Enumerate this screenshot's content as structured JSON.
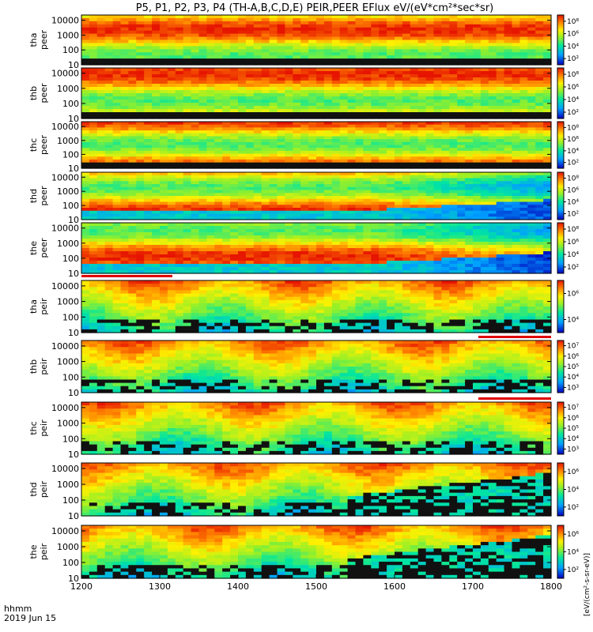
{
  "title": "P5, P1, P2, P3, P4 (TH-A,B,C,D,E) PEIR,PEER EFlux eV/(eV*cm²*sec*sr)",
  "time_axis": {
    "label_line1": "hhmm",
    "label_line2": "2019 Jun 15",
    "ticks": [
      "1200",
      "1300",
      "1400",
      "1500",
      "1600",
      "1700",
      "1800"
    ]
  },
  "colorbar_label": "[eV/(cm²-s-sr-eV)]",
  "chart_data": [
    {
      "type": "heatmap",
      "probe": "tha",
      "species": "peer",
      "ylabel": [
        "tha",
        "peer"
      ],
      "yticks": [
        "10000",
        "1000",
        "100",
        "10"
      ],
      "log_y": true,
      "xlim": [
        1200,
        1800
      ],
      "colorbar_ticks": [
        "10⁸",
        "10⁶",
        "10⁴",
        "10²"
      ]
    },
    {
      "type": "heatmap",
      "probe": "thb",
      "species": "peer",
      "ylabel": [
        "thb",
        "peer"
      ],
      "yticks": [
        "10000",
        "1000",
        "100",
        "10"
      ],
      "log_y": true,
      "xlim": [
        1200,
        1800
      ],
      "colorbar_ticks": [
        "10⁸",
        "10⁶",
        "10⁴",
        "10²"
      ]
    },
    {
      "type": "heatmap",
      "probe": "thc",
      "species": "peer",
      "ylabel": [
        "thc",
        "peer"
      ],
      "yticks": [
        "10000",
        "1000",
        "100",
        "10"
      ],
      "log_y": true,
      "xlim": [
        1200,
        1800
      ],
      "colorbar_ticks": [
        "10⁸",
        "10⁶",
        "10⁴",
        "10²"
      ]
    },
    {
      "type": "heatmap",
      "probe": "thd",
      "species": "peer",
      "ylabel": [
        "thd",
        "peer"
      ],
      "yticks": [
        "10000",
        "1000",
        "100",
        "10"
      ],
      "log_y": true,
      "xlim": [
        1200,
        1800
      ],
      "colorbar_ticks": [
        "10⁸",
        "10⁶",
        "10⁴",
        "10²"
      ]
    },
    {
      "type": "heatmap",
      "probe": "the",
      "species": "peer",
      "ylabel": [
        "the",
        "peer"
      ],
      "yticks": [
        "10000",
        "1000",
        "100",
        "10"
      ],
      "log_y": true,
      "xlim": [
        1200,
        1800
      ],
      "colorbar_ticks": [
        "10⁸",
        "10⁶",
        "10⁴",
        "10²"
      ]
    },
    {
      "type": "heatmap",
      "probe": "tha",
      "species": "peir",
      "ylabel": [
        "tha",
        "peir"
      ],
      "yticks": [
        "10000",
        "1000",
        "100",
        "10"
      ],
      "log_y": true,
      "xlim": [
        1200,
        1800
      ],
      "colorbar_ticks": [
        "10⁶",
        "10⁴"
      ]
    },
    {
      "type": "heatmap",
      "probe": "thb",
      "species": "peir",
      "ylabel": [
        "thb",
        "peir"
      ],
      "yticks": [
        "10000",
        "1000",
        "100",
        "10"
      ],
      "log_y": true,
      "xlim": [
        1200,
        1800
      ],
      "colorbar_ticks": [
        "10⁷",
        "10⁶",
        "10⁵",
        "10⁴",
        "10³"
      ]
    },
    {
      "type": "heatmap",
      "probe": "thc",
      "species": "peir",
      "ylabel": [
        "thc",
        "peir"
      ],
      "yticks": [
        "10000",
        "1000",
        "100",
        "10"
      ],
      "log_y": true,
      "xlim": [
        1200,
        1800
      ],
      "colorbar_ticks": [
        "10⁷",
        "10⁶",
        "10⁵",
        "10⁴",
        "10³"
      ]
    },
    {
      "type": "heatmap",
      "probe": "thd",
      "species": "peir",
      "ylabel": [
        "thd",
        "peir"
      ],
      "yticks": [
        "10000",
        "1000",
        "100",
        "10"
      ],
      "log_y": true,
      "xlim": [
        1200,
        1800
      ],
      "colorbar_ticks": [
        "10⁶",
        "10⁴",
        "10²"
      ]
    },
    {
      "type": "heatmap",
      "probe": "the",
      "species": "peir",
      "ylabel": [
        "the",
        "peir"
      ],
      "yticks": [
        "10000",
        "1000",
        "100",
        "10"
      ],
      "log_y": true,
      "xlim": [
        1200,
        1800
      ],
      "colorbar_ticks": [
        "10⁶",
        "10⁴",
        "10²"
      ]
    }
  ]
}
